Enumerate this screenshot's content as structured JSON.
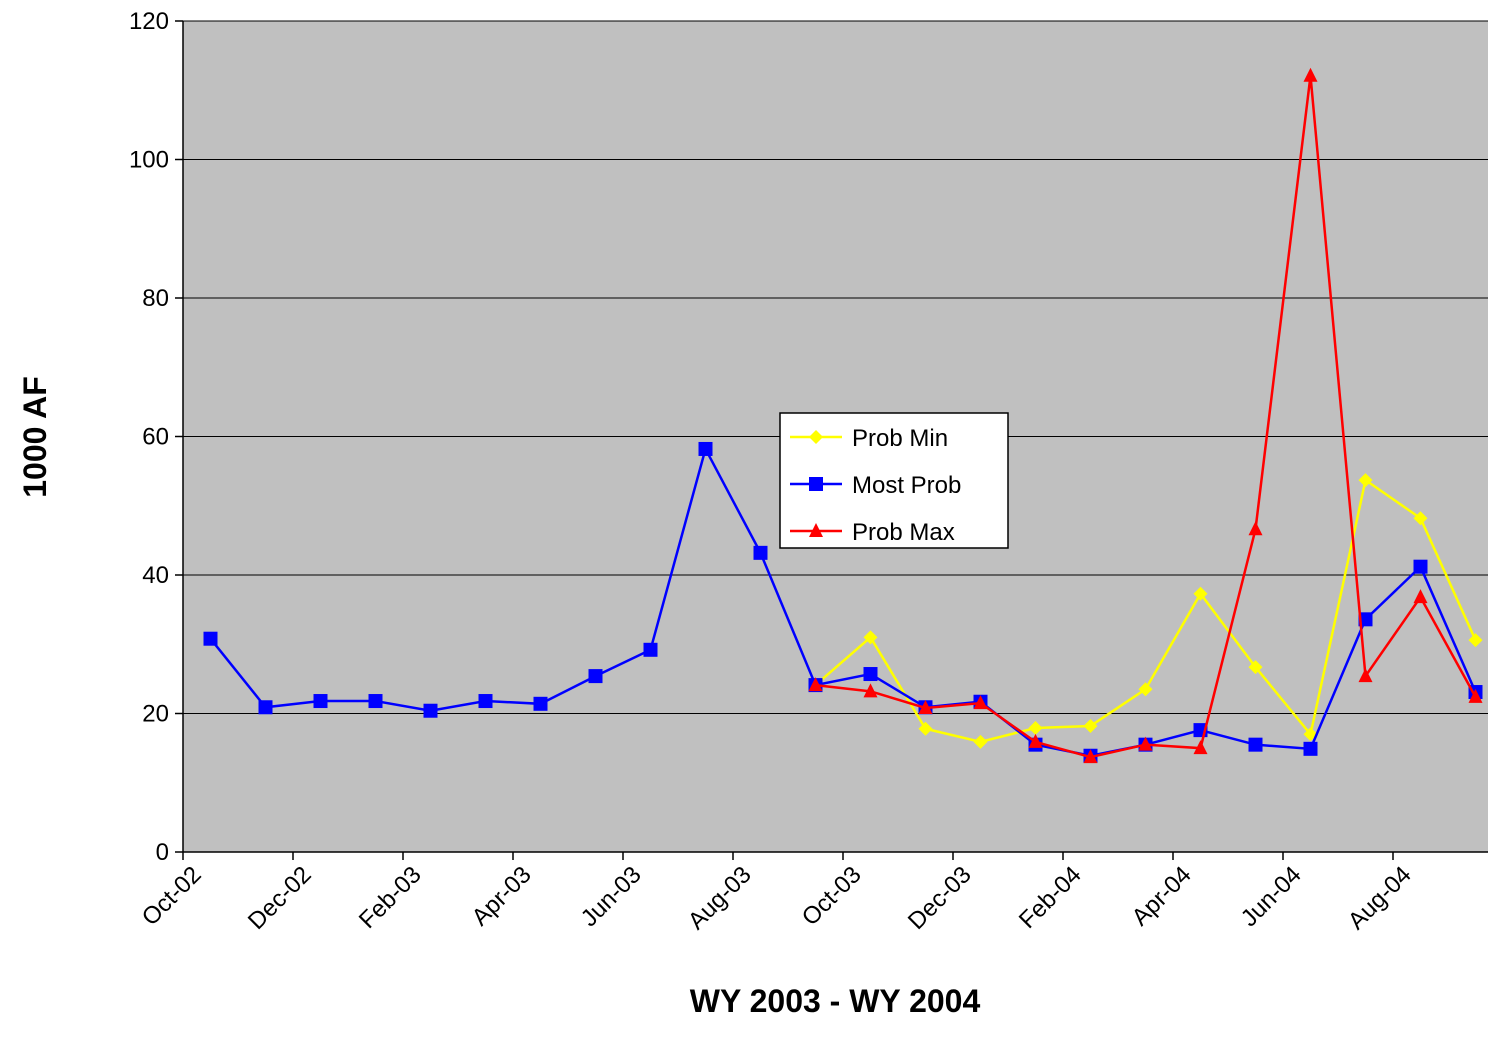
{
  "chart_data": {
    "type": "line",
    "x_label": "WY 2003 - WY 2004",
    "y_label": "1000 AF",
    "categories": [
      "Oct-02",
      null,
      "Dec-02",
      null,
      "Feb-03",
      null,
      "Apr-03",
      null,
      "Jun-03",
      null,
      "Aug-03",
      null,
      "Oct-03",
      null,
      "Dec-03",
      null,
      "Feb-04",
      null,
      "Apr-04",
      null,
      "Jun-04",
      null,
      "Aug-04",
      null
    ],
    "ylim": [
      0,
      120
    ],
    "yticks": [
      0,
      20,
      40,
      60,
      80,
      100,
      120
    ],
    "grid": true,
    "series": [
      {
        "name": "Prob Min",
        "color": "#ffff00",
        "marker": "diamond",
        "values": [
          null,
          null,
          null,
          null,
          null,
          null,
          null,
          null,
          null,
          null,
          null,
          24.1,
          31.0,
          17.8,
          15.9,
          17.9,
          18.2,
          23.5,
          37.3,
          26.7,
          17.0,
          53.7,
          48.2,
          30.6
        ]
      },
      {
        "name": "Most Prob",
        "color": "#0000ff",
        "marker": "square",
        "values": [
          30.8,
          20.9,
          21.8,
          21.8,
          20.4,
          21.8,
          21.4,
          25.4,
          29.2,
          58.2,
          43.2,
          24.1,
          25.7,
          20.9,
          21.7,
          15.5,
          13.9,
          15.5,
          17.6,
          15.5,
          14.9,
          33.6,
          41.2,
          23.1
        ]
      },
      {
        "name": "Prob Max",
        "color": "#ff0000",
        "marker": "triangle",
        "values": [
          null,
          null,
          null,
          null,
          null,
          null,
          null,
          null,
          null,
          null,
          null,
          24.1,
          23.2,
          20.8,
          21.5,
          15.9,
          13.7,
          15.5,
          15.0,
          46.6,
          112.1,
          25.4,
          36.8,
          22.4
        ]
      }
    ]
  }
}
